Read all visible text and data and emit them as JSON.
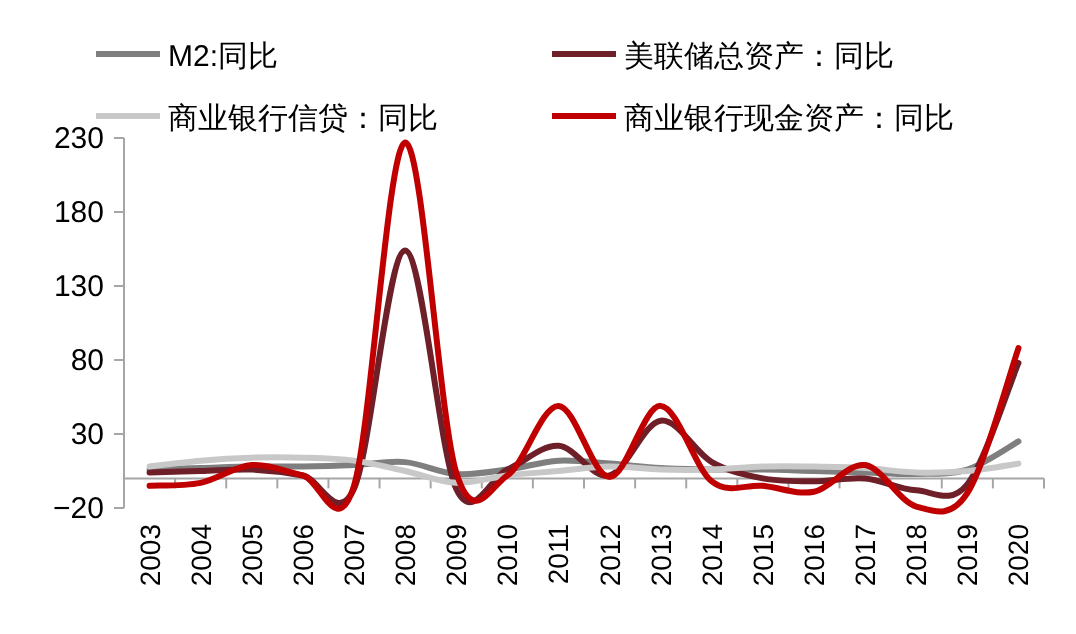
{
  "chart_data": {
    "type": "line",
    "categories": [
      "2003",
      "2004",
      "2005",
      "2006",
      "2007",
      "2008",
      "2009",
      "2010",
      "2011",
      "2012",
      "2013",
      "2014",
      "2015",
      "2016",
      "2017",
      "2018",
      "2019",
      "2020"
    ],
    "ylim": [
      -20,
      230
    ],
    "yticks": [
      -20,
      30,
      80,
      130,
      180,
      230
    ],
    "legend": "top",
    "grid": false,
    "series": [
      {
        "name": "M2:同比",
        "color": "#7f7f7f",
        "values": [
          6,
          7,
          8,
          8,
          9,
          11,
          3,
          6,
          12,
          10,
          7,
          6,
          6,
          5,
          4,
          3,
          6,
          25
        ]
      },
      {
        "name": "美联储总资产：同比",
        "color": "#6e1f28",
        "values": [
          4,
          5,
          6,
          2,
          -7,
          154,
          -7,
          6,
          22,
          2,
          39,
          11,
          0,
          -2,
          0,
          -8,
          -4,
          78
        ]
      },
      {
        "name": "商业银行信贷：同比",
        "color": "#c8c8c8",
        "values": [
          8,
          12,
          14,
          14,
          12,
          5,
          -3,
          2,
          5,
          8,
          6,
          6,
          8,
          8,
          7,
          4,
          5,
          10
        ]
      },
      {
        "name": "商业银行现金资产：同比",
        "color": "#c00000",
        "values": [
          -5,
          -3,
          9,
          2,
          -5,
          227,
          4,
          2,
          49,
          1,
          49,
          -2,
          -5,
          -9,
          9,
          -19,
          -10,
          88
        ]
      }
    ]
  }
}
